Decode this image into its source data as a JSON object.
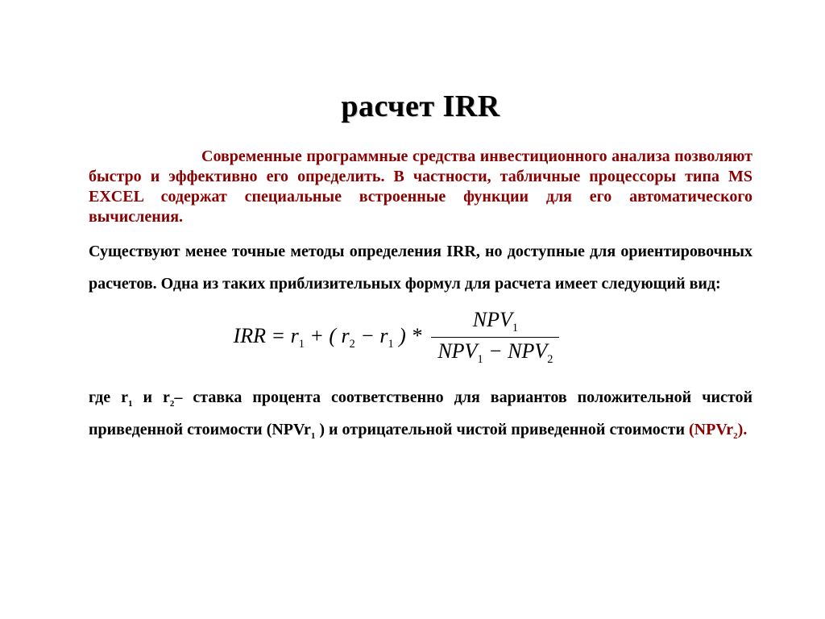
{
  "colors": {
    "title_text": "#000000",
    "title_shadow": "#bbbbbb",
    "accent_red": "#8a0000",
    "body_text": "#000000",
    "background": "#ffffff",
    "formula_rule": "#000000"
  },
  "typography": {
    "font_family": "Times New Roman",
    "title_fontsize_pt": 28,
    "body_fontsize_pt": 15,
    "body_weight": "bold",
    "formula_fontsize_pt": 20,
    "formula_style": "italic"
  },
  "title": "расчет IRR",
  "paragraphs": {
    "intro_red": "Современные программные средства инвестиционного анализа позволяют быстро и эффективно его определить. В частности, табличные процессоры типа MS EXCEL содержат специальные встроенные функции для его автоматического вычисления.",
    "intro_black": "Существуют  менее точные методы определения IRR, но доступные для ориентировочных расчетов. Одна из таких приблизительных формул для расчета имеет следующий вид:",
    "explain_prefix": "где  r",
    "explain_mid1": "  и   r",
    "explain_mid2": "– ставка процента соответственно для вариантов положительной чистой приведенной стоимости (NPVr",
    "explain_mid3": " ) и отрицательной  чистой приведенной стоимости ",
    "explain_npv2_open": "(NPVr",
    "explain_npv2_close": ").",
    "sub1": "1",
    "sub2": "2"
  },
  "formula": {
    "lhs": "IRR",
    "eq": " = ",
    "r1": "r",
    "r1_sub": "1",
    "plus": " + ( ",
    "r2": "r",
    "r2_sub": "2",
    "minus": " − ",
    "r1b": "r",
    "r1b_sub": "1",
    "close_mul": " ) * ",
    "num_npv": "NPV",
    "num_sub": "1",
    "den_npv1": "NPV",
    "den_sub1": "1",
    "den_minus": " − ",
    "den_npv2": "NPV",
    "den_sub2": "2"
  }
}
